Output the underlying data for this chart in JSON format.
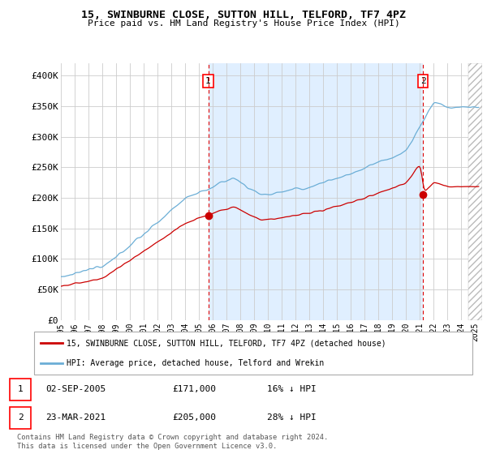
{
  "title": "15, SWINBURNE CLOSE, SUTTON HILL, TELFORD, TF7 4PZ",
  "subtitle": "Price paid vs. HM Land Registry's House Price Index (HPI)",
  "ylim": [
    0,
    420000
  ],
  "yticks": [
    0,
    50000,
    100000,
    150000,
    200000,
    250000,
    300000,
    350000,
    400000
  ],
  "ytick_labels": [
    "£0",
    "£50K",
    "£100K",
    "£150K",
    "£200K",
    "£250K",
    "£300K",
    "£350K",
    "£400K"
  ],
  "xlim_start": 1995.0,
  "xlim_end": 2025.5,
  "xticks": [
    1995,
    1996,
    1997,
    1998,
    1999,
    2000,
    2001,
    2002,
    2003,
    2004,
    2005,
    2006,
    2007,
    2008,
    2009,
    2010,
    2011,
    2012,
    2013,
    2014,
    2015,
    2016,
    2017,
    2018,
    2019,
    2020,
    2021,
    2022,
    2023,
    2024,
    2025
  ],
  "hpi_color": "#6baed6",
  "price_color": "#cc0000",
  "sale1_date": 2005.67,
  "sale1_price": 171000,
  "sale2_date": 2021.23,
  "sale2_price": 205000,
  "legend_line1": "15, SWINBURNE CLOSE, SUTTON HILL, TELFORD, TF7 4PZ (detached house)",
  "legend_line2": "HPI: Average price, detached house, Telford and Wrekin",
  "table_row1": [
    "1",
    "02-SEP-2005",
    "£171,000",
    "16% ↓ HPI"
  ],
  "table_row2": [
    "2",
    "23-MAR-2021",
    "£205,000",
    "28% ↓ HPI"
  ],
  "footnote1": "Contains HM Land Registry data © Crown copyright and database right 2024.",
  "footnote2": "This data is licensed under the Open Government Licence v3.0.",
  "bg_color": "#ddeeff",
  "shade_color": "#ddeeff",
  "hatch_color": "#bbbbbb"
}
